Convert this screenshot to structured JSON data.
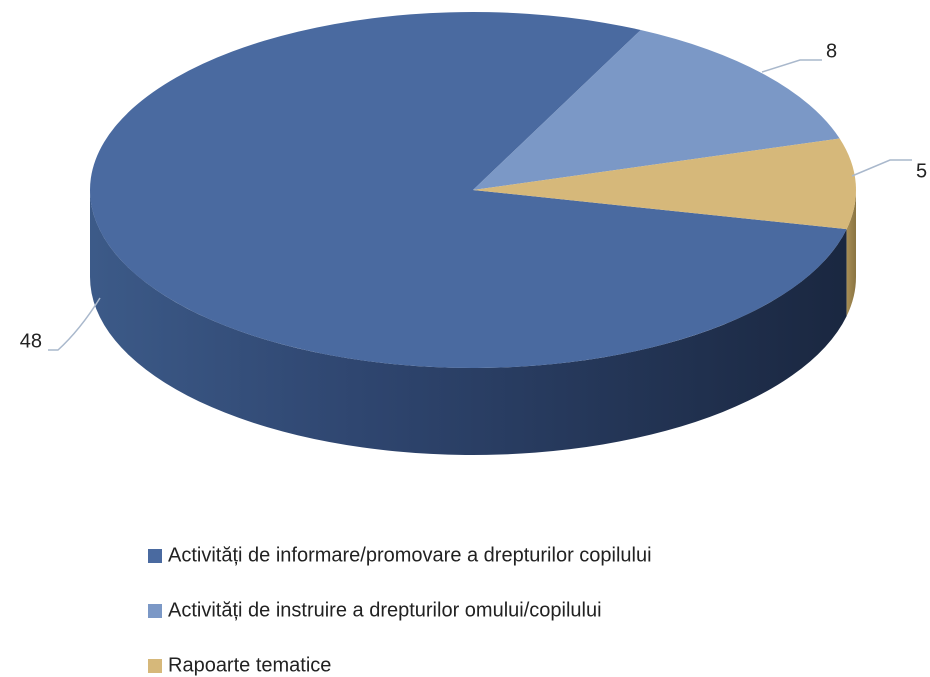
{
  "chart_data": {
    "type": "pie3d",
    "categories": [
      "Activități de informare/promovare a drepturilor copilului",
      "Activități de instruire a drepturilor omului/copilului",
      "Rapoarte tematice"
    ],
    "values": [
      48,
      8,
      5
    ],
    "colors": [
      "#4a6aa0",
      "#7b98c6",
      "#d6b87a"
    ]
  }
}
